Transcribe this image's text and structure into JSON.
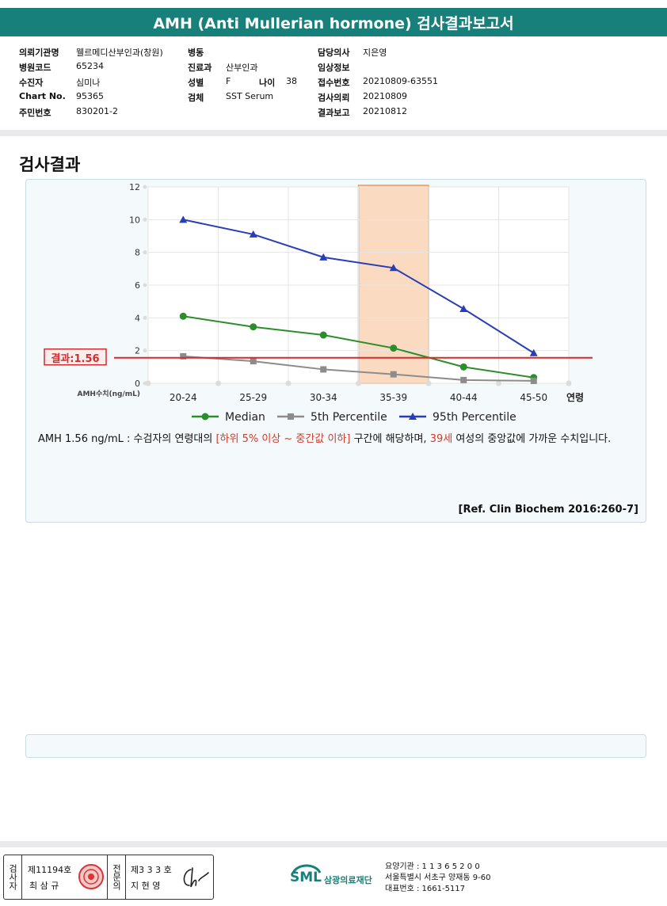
{
  "header": {
    "title": "AMH (Anti Mullerian hormone) 검사결과보고서"
  },
  "patient_info": {
    "institution_label": "의뢰기관명",
    "institution": "웰르메디산부인과(창원)",
    "hospital_code_label": "병원코드",
    "hospital_code": "65234",
    "patient_label": "수진자",
    "patient": "심미나",
    "chart_label": "Chart No.",
    "chart_no": "95365",
    "resident_label": "주민번호",
    "resident_no": "830201-2",
    "ward_label": "병동",
    "ward": "",
    "dept_label": "진료과",
    "dept": "산부인과",
    "sex_label": "성별",
    "sex": "F",
    "age_label": "나이",
    "age": "38",
    "specimen_label": "검체",
    "specimen": "SST Serum",
    "doctor_label": "담당의사",
    "doctor": "지은영",
    "clinical_label": "임상정보",
    "clinical": "",
    "receipt_label": "접수번호",
    "receipt": "20210809-63551",
    "request_label": "검사의뢰",
    "request_date": "20210809",
    "report_label": "결과보고",
    "report_date": "20210812"
  },
  "section_title": "검사결과",
  "chart_data": {
    "type": "line",
    "categories": [
      "20-24",
      "25-29",
      "30-34",
      "35-39",
      "40-44",
      "45-50"
    ],
    "x_suffix": "연령",
    "ylabel": "AMH수치(ng/mL)",
    "ylim": [
      0,
      12
    ],
    "yticks": [
      "0",
      "2",
      "4",
      "6",
      "8",
      "10",
      "12"
    ],
    "series": [
      {
        "name": "Median",
        "color": "#2a8f2a",
        "marker": "circle",
        "values": [
          4.1,
          3.45,
          2.95,
          2.15,
          1.0,
          0.35
        ]
      },
      {
        "name": "5th Percentile",
        "color": "#8c8c8c",
        "marker": "square",
        "values": [
          1.65,
          1.35,
          0.85,
          0.55,
          0.2,
          0.15
        ]
      },
      {
        "name": "95th Percentile",
        "color": "#2a3db8",
        "marker": "triangle",
        "values": [
          10.0,
          9.1,
          7.7,
          7.05,
          4.55,
          1.85
        ]
      }
    ],
    "result_line": {
      "value": 1.56,
      "label": "결과:1.56",
      "color": "#d42b2b"
    },
    "highlight_category": "35-39",
    "grid": true,
    "legend_position": "bottom"
  },
  "interpretation": {
    "part1": "AMH  1.56 ng/mL : 수검자의 연령대의 ",
    "range": "[하위 5% 이상 ~ 중간값 이하]",
    "part2": " 구간에 해당하며, ",
    "age": "39세",
    "part3": " 여성의 중앙값에 가까운 수치입니다."
  },
  "reference": "[Ref. Clin Biochem 2016:260-7]",
  "footer": {
    "examiner_label": "검사자",
    "examiner_no": "제11194호",
    "examiner_name": "최 삼 규",
    "reviewer_label": "전문의",
    "reviewer_no": "제3 3 3 호",
    "reviewer_name": "지 현 영",
    "logo": "SML",
    "org_name": "삼광의료재단",
    "code_line": "요양기관 : 1 1 3 6 5 2 0 0",
    "address_line": "서울특별시 서초구 양재동 9-60",
    "phone_line": "대표번호 : 1661-5117"
  }
}
